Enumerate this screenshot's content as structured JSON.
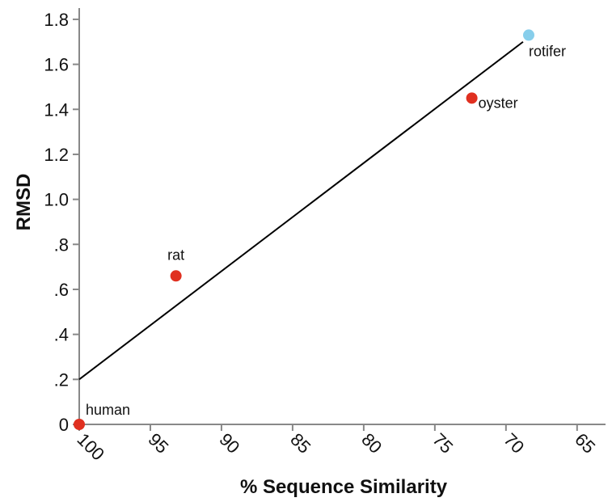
{
  "chart_data": {
    "type": "scatter",
    "xlabel": "% Sequence Similarity",
    "ylabel": "RMSD",
    "xlim": [
      100,
      63
    ],
    "ylim": [
      0,
      1.85
    ],
    "x_reversed": true,
    "x_ticks": [
      {
        "value": 100,
        "label": "100"
      },
      {
        "value": 95,
        "label": "95"
      },
      {
        "value": 90,
        "label": "90"
      },
      {
        "value": 85,
        "label": "85"
      },
      {
        "value": 80,
        "label": "80"
      },
      {
        "value": 75,
        "label": "75"
      },
      {
        "value": 70,
        "label": "70"
      },
      {
        "value": 65,
        "label": "65"
      }
    ],
    "y_ticks": [
      {
        "value": 0,
        "label": "0"
      },
      {
        "value": 0.2,
        "label": ".2"
      },
      {
        "value": 0.4,
        "label": ".4"
      },
      {
        "value": 0.6,
        "label": ".6"
      },
      {
        "value": 0.8,
        "label": ".8"
      },
      {
        "value": 1.0,
        "label": "1.0"
      },
      {
        "value": 1.2,
        "label": "1.2"
      },
      {
        "value": 1.4,
        "label": "1.4"
      },
      {
        "value": 1.6,
        "label": "1.6"
      },
      {
        "value": 1.8,
        "label": "1.8"
      }
    ],
    "points": [
      {
        "label": "human",
        "x": 100,
        "y": 0.0,
        "color": "#e03020"
      },
      {
        "label": "rat",
        "x": 93.2,
        "y": 0.66,
        "color": "#e03020"
      },
      {
        "label": "oyster",
        "x": 72.4,
        "y": 1.45,
        "color": "#e03020"
      },
      {
        "label": "rotifer",
        "x": 68.4,
        "y": 1.73,
        "color": "#87ceeb"
      }
    ],
    "fit_line": {
      "x": [
        100,
        68.8
      ],
      "y": [
        0.2,
        1.7
      ],
      "color": "#000000"
    },
    "grid": false
  }
}
